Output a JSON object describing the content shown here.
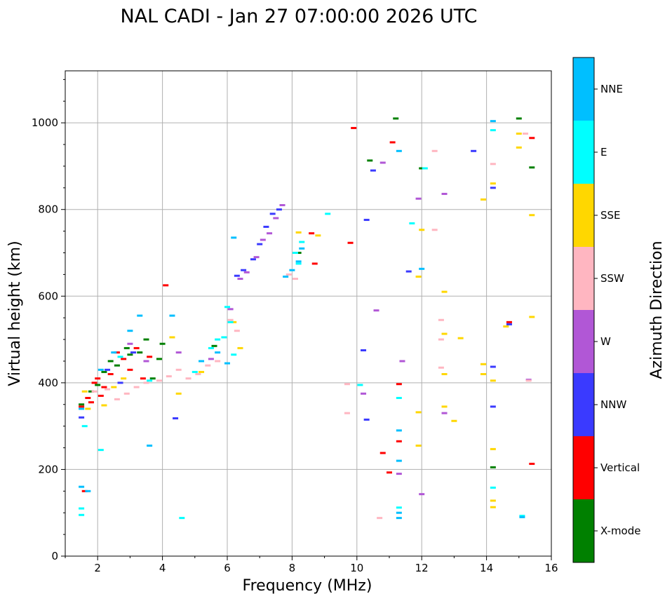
{
  "chart_data": {
    "type": "scatter",
    "title": "NAL CADI - Jan 27 07:00:00 2026 UTC",
    "xlabel": "Frequency (MHz)",
    "ylabel": "Virtual height (km)",
    "xlim": [
      1,
      16
    ],
    "ylim": [
      0,
      1120
    ],
    "xticks": [
      2,
      4,
      6,
      8,
      10,
      12,
      14,
      16
    ],
    "yticks": [
      0,
      200,
      400,
      600,
      800,
      1000
    ],
    "grid": true,
    "colorbar": {
      "label": "Azimuth Direction",
      "categories": [
        {
          "name": "X-mode",
          "color": "#008000"
        },
        {
          "name": "Vertical",
          "color": "#ff0000"
        },
        {
          "name": "NNW",
          "color": "#3a3aff"
        },
        {
          "name": "W",
          "color": "#b157d6"
        },
        {
          "name": "SSW",
          "color": "#ffb6c1"
        },
        {
          "name": "SSE",
          "color": "#ffd700"
        },
        {
          "name": "E",
          "color": "#00ffff"
        },
        {
          "name": "NNE",
          "color": "#00bfff"
        }
      ]
    },
    "series": [
      {
        "name": "X-mode",
        "points": [
          [
            1.5,
            350
          ],
          [
            1.8,
            380
          ],
          [
            2.0,
            395
          ],
          [
            2.2,
            425
          ],
          [
            2.4,
            450
          ],
          [
            2.6,
            440
          ],
          [
            2.9,
            480
          ],
          [
            3.0,
            465
          ],
          [
            3.3,
            470
          ],
          [
            3.5,
            500
          ],
          [
            3.7,
            410
          ],
          [
            3.9,
            455
          ],
          [
            4.0,
            490
          ],
          [
            5.6,
            485
          ],
          [
            8.2,
            700
          ],
          [
            10.4,
            913
          ],
          [
            11.2,
            1010
          ],
          [
            12.0,
            895
          ],
          [
            14.2,
            205
          ],
          [
            15.0,
            1010
          ],
          [
            15.4,
            897
          ]
        ]
      },
      {
        "name": "Vertical",
        "points": [
          [
            1.5,
            345
          ],
          [
            1.6,
            150
          ],
          [
            1.7,
            365
          ],
          [
            1.8,
            355
          ],
          [
            1.9,
            400
          ],
          [
            2.0,
            410
          ],
          [
            2.1,
            370
          ],
          [
            2.2,
            390
          ],
          [
            2.4,
            420
          ],
          [
            2.6,
            470
          ],
          [
            2.8,
            455
          ],
          [
            3.0,
            430
          ],
          [
            3.2,
            480
          ],
          [
            3.4,
            410
          ],
          [
            3.6,
            460
          ],
          [
            4.1,
            625
          ],
          [
            8.6,
            745
          ],
          [
            8.7,
            675
          ],
          [
            9.8,
            723
          ],
          [
            9.9,
            988
          ],
          [
            10.8,
            238
          ],
          [
            11.0,
            193
          ],
          [
            11.1,
            955
          ],
          [
            11.3,
            265
          ],
          [
            11.3,
            397
          ],
          [
            14.7,
            540
          ],
          [
            15.4,
            965
          ],
          [
            15.4,
            213
          ]
        ]
      },
      {
        "name": "NNW",
        "points": [
          [
            1.5,
            320
          ],
          [
            2.3,
            430
          ],
          [
            2.7,
            400
          ],
          [
            3.1,
            470
          ],
          [
            4.4,
            318
          ],
          [
            6.3,
            647
          ],
          [
            6.5,
            660
          ],
          [
            6.8,
            685
          ],
          [
            7.0,
            720
          ],
          [
            7.2,
            760
          ],
          [
            7.4,
            790
          ],
          [
            7.6,
            800
          ],
          [
            10.2,
            475
          ],
          [
            10.3,
            315
          ],
          [
            10.3,
            776
          ],
          [
            10.5,
            890
          ],
          [
            11.6,
            657
          ],
          [
            13.6,
            935
          ],
          [
            14.2,
            850
          ],
          [
            14.2,
            345
          ],
          [
            14.2,
            437
          ],
          [
            14.7,
            535
          ]
        ]
      },
      {
        "name": "W",
        "points": [
          [
            3.0,
            490
          ],
          [
            3.5,
            450
          ],
          [
            4.5,
            470
          ],
          [
            5.5,
            455
          ],
          [
            6.1,
            570
          ],
          [
            6.4,
            640
          ],
          [
            6.6,
            655
          ],
          [
            6.9,
            690
          ],
          [
            7.1,
            730
          ],
          [
            7.3,
            745
          ],
          [
            7.5,
            780
          ],
          [
            7.7,
            810
          ],
          [
            10.2,
            375
          ],
          [
            10.6,
            567
          ],
          [
            10.8,
            908
          ],
          [
            11.3,
            190
          ],
          [
            11.4,
            450
          ],
          [
            11.9,
            825
          ],
          [
            12.0,
            143
          ],
          [
            12.7,
            330
          ],
          [
            12.7,
            836
          ],
          [
            15.3,
            407
          ]
        ]
      },
      {
        "name": "SSW",
        "points": [
          [
            1.9,
            380
          ],
          [
            2.3,
            385
          ],
          [
            2.6,
            362
          ],
          [
            2.9,
            375
          ],
          [
            3.2,
            390
          ],
          [
            3.5,
            400
          ],
          [
            3.9,
            405
          ],
          [
            4.2,
            415
          ],
          [
            4.5,
            430
          ],
          [
            4.8,
            410
          ],
          [
            5.1,
            420
          ],
          [
            5.4,
            440
          ],
          [
            5.7,
            450
          ],
          [
            6.1,
            545
          ],
          [
            6.3,
            520
          ],
          [
            7.9,
            650
          ],
          [
            8.1,
            640
          ],
          [
            9.7,
            397
          ],
          [
            9.7,
            330
          ],
          [
            10.7,
            88
          ],
          [
            12.4,
            753
          ],
          [
            12.4,
            935
          ],
          [
            12.6,
            545
          ],
          [
            12.6,
            500
          ],
          [
            12.6,
            435
          ],
          [
            14.2,
            905
          ],
          [
            15.2,
            975
          ],
          [
            15.3,
            405
          ]
        ]
      },
      {
        "name": "SSE",
        "points": [
          [
            1.6,
            380
          ],
          [
            1.7,
            340
          ],
          [
            2.2,
            348
          ],
          [
            2.5,
            390
          ],
          [
            2.8,
            410
          ],
          [
            4.3,
            505
          ],
          [
            4.5,
            375
          ],
          [
            5.2,
            425
          ],
          [
            6.2,
            540
          ],
          [
            6.4,
            480
          ],
          [
            8.2,
            747
          ],
          [
            8.8,
            740
          ],
          [
            11.9,
            255
          ],
          [
            11.9,
            332
          ],
          [
            11.9,
            645
          ],
          [
            12.0,
            753
          ],
          [
            12.7,
            610
          ],
          [
            12.7,
            513
          ],
          [
            12.7,
            345
          ],
          [
            12.7,
            420
          ],
          [
            13.0,
            312
          ],
          [
            13.2,
            503
          ],
          [
            13.9,
            823
          ],
          [
            13.9,
            443
          ],
          [
            13.9,
            420
          ],
          [
            14.2,
            860
          ],
          [
            14.2,
            405
          ],
          [
            14.2,
            247
          ],
          [
            14.2,
            128
          ],
          [
            14.2,
            113
          ],
          [
            14.6,
            530
          ],
          [
            15.0,
            975
          ],
          [
            15.0,
            943
          ],
          [
            15.4,
            552
          ],
          [
            15.4,
            787
          ]
        ]
      },
      {
        "name": "E",
        "points": [
          [
            1.5,
            110
          ],
          [
            1.5,
            95
          ],
          [
            1.6,
            300
          ],
          [
            2.1,
            245
          ],
          [
            2.7,
            460
          ],
          [
            3.6,
            405
          ],
          [
            4.6,
            88
          ],
          [
            5.0,
            425
          ],
          [
            5.5,
            480
          ],
          [
            5.7,
            500
          ],
          [
            5.9,
            505
          ],
          [
            6.0,
            575
          ],
          [
            6.1,
            540
          ],
          [
            6.2,
            465
          ],
          [
            8.1,
            700
          ],
          [
            8.2,
            675
          ],
          [
            8.3,
            725
          ],
          [
            9.1,
            790
          ],
          [
            10.1,
            395
          ],
          [
            11.3,
            112
          ],
          [
            11.3,
            365
          ],
          [
            11.7,
            768
          ],
          [
            12.1,
            895
          ],
          [
            14.2,
            983
          ],
          [
            14.2,
            158
          ],
          [
            15.1,
            93
          ]
        ]
      },
      {
        "name": "NNE",
        "points": [
          [
            1.5,
            160
          ],
          [
            1.5,
            340
          ],
          [
            1.7,
            150
          ],
          [
            2.1,
            430
          ],
          [
            2.5,
            470
          ],
          [
            3.0,
            520
          ],
          [
            3.3,
            555
          ],
          [
            3.6,
            255
          ],
          [
            4.3,
            555
          ],
          [
            5.2,
            450
          ],
          [
            5.7,
            470
          ],
          [
            6.0,
            445
          ],
          [
            6.2,
            735
          ],
          [
            7.8,
            645
          ],
          [
            8.0,
            660
          ],
          [
            8.2,
            680
          ],
          [
            8.3,
            710
          ],
          [
            11.3,
            935
          ],
          [
            11.3,
            220
          ],
          [
            11.3,
            290
          ],
          [
            11.3,
            100
          ],
          [
            11.3,
            88
          ],
          [
            12.0,
            663
          ],
          [
            14.2,
            1004
          ],
          [
            15.1,
            90
          ]
        ]
      }
    ]
  }
}
